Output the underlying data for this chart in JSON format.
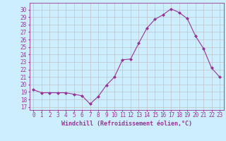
{
  "x": [
    0,
    1,
    2,
    3,
    4,
    5,
    6,
    7,
    8,
    9,
    10,
    11,
    12,
    13,
    14,
    15,
    16,
    17,
    18,
    19,
    20,
    21,
    22,
    23
  ],
  "y": [
    19.3,
    18.9,
    18.9,
    18.9,
    18.9,
    18.7,
    18.5,
    17.4,
    18.4,
    19.9,
    21.0,
    23.3,
    23.4,
    25.5,
    27.5,
    28.7,
    29.3,
    30.1,
    29.6,
    28.8,
    26.5,
    24.8,
    22.2,
    21.0
  ],
  "line_color": "#993399",
  "marker": "D",
  "marker_size": 2,
  "bg_color": "#cceeff",
  "grid_color": "#bbbbbb",
  "ylabel_ticks": [
    17,
    18,
    19,
    20,
    21,
    22,
    23,
    24,
    25,
    26,
    27,
    28,
    29,
    30
  ],
  "xlabel": "Windchill (Refroidissement éolien,°C)",
  "xlabel_fontsize": 6.0,
  "tick_fontsize": 5.5,
  "ylim": [
    16.6,
    30.9
  ],
  "xlim": [
    -0.5,
    23.5
  ]
}
